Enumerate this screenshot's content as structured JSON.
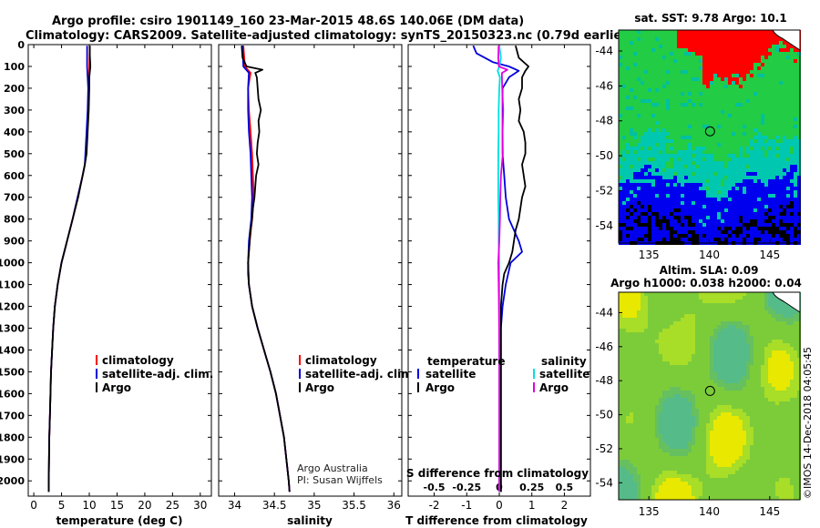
{
  "header": {
    "line1": "Argo profile: csiro 1901149_160 23-Mar-2015 48.6S 140.06E (DM data)",
    "line2": "Climatology: CARS2009. Satellite-adjusted climatology: synTS_20150323.nc (0.79d earlier)"
  },
  "credit": {
    "line1": "Argo Australia",
    "line2": "PI: Susan Wijffels",
    "watermark": "©IMOS 14-Dec-2018 04:05:45"
  },
  "depth_ticks": [
    "0",
    "100",
    "200",
    "300",
    "400",
    "500",
    "600",
    "700",
    "800",
    "900",
    "1000",
    "1100",
    "1200",
    "1300",
    "1400",
    "1500",
    "1600",
    "1700",
    "1800",
    "1900",
    "2000"
  ],
  "colors": {
    "climatology": "#ff0000",
    "satellite": "#0000dd",
    "argo": "#000000",
    "satellite_s": "#00e0e0",
    "argo_s": "#e000e0"
  },
  "chart_data": [
    {
      "type": "line",
      "id": "temperature",
      "xlabel": "temperature (deg C)",
      "xlim": [
        -1,
        32
      ],
      "xticks": [
        "0",
        "5",
        "10",
        "15",
        "20",
        "25",
        "30"
      ],
      "xtick_values": [
        0,
        5,
        10,
        15,
        20,
        25,
        30
      ],
      "ylim": [
        2070,
        0
      ],
      "legend": [
        "climatology",
        "satellite-adj. clim.",
        "Argo"
      ],
      "series": [
        {
          "name": "climatology",
          "depth": [
            5,
            100,
            200,
            300,
            400,
            500,
            550,
            600,
            700,
            800,
            900,
            1000,
            1100,
            1200,
            1300,
            1400,
            1500,
            1600,
            1700,
            1800,
            1900,
            2000,
            2050
          ],
          "values": [
            10.1,
            10.0,
            9.9,
            9.8,
            9.6,
            9.4,
            9.2,
            8.8,
            7.9,
            7.0,
            6.0,
            5.0,
            4.3,
            3.8,
            3.5,
            3.3,
            3.1,
            3.0,
            2.9,
            2.8,
            2.75,
            2.7,
            2.7
          ]
        },
        {
          "name": "satellite-adj. clim.",
          "depth": [
            5,
            100,
            200,
            300,
            400,
            500,
            550,
            600,
            700,
            800,
            900,
            1000,
            1100,
            1200,
            1300,
            1400,
            1500,
            1600,
            1700,
            1800,
            1900,
            2000,
            2050
          ],
          "values": [
            9.6,
            9.6,
            9.8,
            9.7,
            9.5,
            9.3,
            9.2,
            8.8,
            7.9,
            7.0,
            6.0,
            5.0,
            4.3,
            3.8,
            3.5,
            3.3,
            3.1,
            3.0,
            2.9,
            2.8,
            2.75,
            2.7,
            2.7
          ]
        },
        {
          "name": "Argo",
          "depth": [
            5,
            50,
            100,
            150,
            200,
            300,
            400,
            500,
            550,
            600,
            700,
            800,
            900,
            1000,
            1100,
            1200,
            1300,
            1400,
            1500,
            1600,
            1700,
            1800,
            1900,
            2000,
            2050
          ],
          "values": [
            10.1,
            10.1,
            10.2,
            10.0,
            10.0,
            9.9,
            9.7,
            9.5,
            9.2,
            8.8,
            8.0,
            7.0,
            6.0,
            5.0,
            4.3,
            3.8,
            3.5,
            3.3,
            3.1,
            3.0,
            2.9,
            2.8,
            2.75,
            2.7,
            2.7
          ]
        }
      ]
    },
    {
      "type": "line",
      "id": "salinity",
      "xlabel": "salinity",
      "xlim": [
        33.8,
        36.1
      ],
      "xticks": [
        "34",
        "34.5",
        "35",
        "35.5",
        "36"
      ],
      "xtick_values": [
        34,
        34.5,
        35,
        35.5,
        36
      ],
      "ylim": [
        2070,
        0
      ],
      "legend": [
        "climatology",
        "satellite-adj. clim.",
        "Argo"
      ],
      "series": [
        {
          "name": "climatology",
          "depth": [
            5,
            100,
            130,
            200,
            300,
            400,
            500,
            600,
            700,
            800,
            900,
            1000,
            1100,
            1200,
            1300,
            1400,
            1500,
            1600,
            1700,
            1800,
            1900,
            2000,
            2050
          ],
          "values": [
            34.11,
            34.13,
            34.2,
            34.17,
            34.18,
            34.2,
            34.22,
            34.23,
            34.24,
            34.22,
            34.19,
            34.17,
            34.18,
            34.22,
            34.29,
            34.37,
            34.45,
            34.52,
            34.57,
            34.62,
            34.65,
            34.68,
            34.69
          ]
        },
        {
          "name": "satellite-adj. clim.",
          "depth": [
            5,
            100,
            130,
            200,
            300,
            400,
            500,
            600,
            700,
            800,
            900,
            1000,
            1100,
            1200,
            1300,
            1400,
            1500,
            1600,
            1700,
            1800,
            1900,
            2000,
            2050
          ],
          "values": [
            34.1,
            34.11,
            34.18,
            34.17,
            34.17,
            34.18,
            34.2,
            34.21,
            34.22,
            34.21,
            34.18,
            34.17,
            34.18,
            34.22,
            34.29,
            34.37,
            34.45,
            34.52,
            34.57,
            34.62,
            34.65,
            34.68,
            34.69
          ]
        },
        {
          "name": "Argo",
          "depth": [
            5,
            60,
            100,
            115,
            130,
            150,
            200,
            250,
            300,
            350,
            400,
            450,
            500,
            550,
            600,
            650,
            700,
            750,
            800,
            850,
            900,
            950,
            1000,
            1050,
            1100,
            1200,
            1300,
            1400,
            1500,
            1600,
            1700,
            1800,
            1900,
            2000,
            2050
          ],
          "values": [
            34.09,
            34.1,
            34.15,
            34.35,
            34.26,
            34.28,
            34.29,
            34.3,
            34.33,
            34.3,
            34.31,
            34.29,
            34.28,
            34.3,
            34.27,
            34.26,
            34.25,
            34.23,
            34.22,
            34.2,
            34.19,
            34.18,
            34.17,
            34.17,
            34.18,
            34.22,
            34.29,
            34.37,
            34.45,
            34.52,
            34.57,
            34.62,
            34.65,
            34.68,
            34.69
          ]
        }
      ]
    },
    {
      "type": "line",
      "id": "difference",
      "xlabel": "T difference from climatology",
      "xlabel2": "S difference from climatology",
      "xlim": [
        -2.8,
        2.8
      ],
      "xticks": [
        "-2",
        "-1",
        "0",
        "1",
        "2"
      ],
      "xtick_values": [
        -2,
        -1,
        0,
        1,
        2
      ],
      "xticks2": [
        "-0.5",
        "-0.25",
        "0",
        "0.25",
        "0.5"
      ],
      "legend_t_title": "temperature",
      "legend_s_title": "salinity",
      "legend": [
        "satellite",
        "Argo",
        "satellite",
        "Argo"
      ],
      "ylim": [
        2070,
        0
      ],
      "series": [
        {
          "name": "satellite",
          "depth": [
            5,
            40,
            80,
            100,
            120,
            150,
            200,
            300,
            400,
            500,
            600,
            700,
            800,
            900,
            950,
            1000,
            1100,
            1200,
            1300,
            1500,
            1700,
            1900,
            2050
          ],
          "values": [
            -0.8,
            -0.7,
            -0.2,
            0.3,
            0.6,
            0.3,
            0.1,
            0.1,
            0.1,
            0.1,
            0.15,
            0.2,
            0.3,
            0.6,
            0.7,
            0.35,
            0.2,
            0.1,
            0.05,
            0.05,
            0.05,
            0.05,
            0.05
          ]
        },
        {
          "name": "Argo",
          "depth": [
            5,
            60,
            100,
            120,
            150,
            200,
            250,
            300,
            350,
            400,
            450,
            500,
            550,
            600,
            650,
            700,
            750,
            800,
            850,
            900,
            950,
            1000,
            1050,
            1100,
            1200,
            1300,
            1400,
            1600,
            1800,
            2000,
            2050
          ],
          "values": [
            0.5,
            0.6,
            0.9,
            0.8,
            0.7,
            0.7,
            0.6,
            0.65,
            0.6,
            0.75,
            0.8,
            0.8,
            0.7,
            0.75,
            0.8,
            0.7,
            0.65,
            0.6,
            0.5,
            0.45,
            0.4,
            0.3,
            0.15,
            0.1,
            0.05,
            0.05,
            0.05,
            0.05,
            0.05,
            0.05,
            0.05
          ]
        },
        {
          "name": "salinity satellite",
          "depth": [
            5,
            60,
            100,
            120,
            150,
            200,
            300,
            400,
            500,
            600,
            700,
            800,
            900,
            1000,
            1100,
            1200,
            1400,
            1600,
            1800,
            2000,
            2050
          ],
          "values": [
            0.0,
            0.05,
            0.0,
            -0.05,
            0.02,
            0.0,
            -0.02,
            -0.02,
            -0.03,
            -0.03,
            -0.03,
            -0.02,
            -0.02,
            0.0,
            0.0,
            0.0,
            0.0,
            0.0,
            0.0,
            0.0,
            0.0
          ]
        },
        {
          "name": "salinity Argo",
          "depth": [
            5,
            60,
            100,
            115,
            130,
            150,
            200,
            300,
            400,
            500,
            600,
            700,
            800,
            900,
            1000,
            1100,
            1200,
            1400,
            1600,
            1800,
            2000,
            2050
          ],
          "values": [
            -0.02,
            -0.03,
            -0.01,
            0.25,
            0.08,
            0.08,
            0.09,
            0.12,
            0.1,
            0.11,
            0.05,
            0.03,
            0.02,
            0.0,
            -0.03,
            -0.02,
            -0.01,
            0.0,
            0.0,
            0.0,
            0.0,
            0.0
          ]
        }
      ]
    },
    {
      "type": "heatmap",
      "id": "sst_map",
      "title": "sat. SST: 9.78 Argo: 10.1",
      "xticks": [
        "135",
        "140",
        "145"
      ],
      "xtick_values": [
        135,
        140,
        145
      ],
      "yticks": [
        "-44",
        "-46",
        "-48",
        "-50",
        "-52",
        "-54"
      ],
      "ytick_values": [
        -44,
        -46,
        -48,
        -50,
        -52,
        -54
      ],
      "xlim": [
        132.5,
        147.5
      ],
      "ylim": [
        -55,
        -42.8
      ],
      "marker": {
        "lon": 140.06,
        "lat": -48.6
      }
    },
    {
      "type": "heatmap",
      "id": "sla_map",
      "title": "Altim. SLA: 0.09",
      "title2": "Argo h1000: 0.038 h2000: 0.04",
      "xticks": [
        "135",
        "140",
        "145"
      ],
      "xtick_values": [
        135,
        140,
        145
      ],
      "yticks": [
        "-44",
        "-46",
        "-48",
        "-50",
        "-52",
        "-54"
      ],
      "ytick_values": [
        -44,
        -46,
        -48,
        -50,
        -52,
        -54
      ],
      "xlim": [
        132.5,
        147.5
      ],
      "ylim": [
        -55,
        -42.8
      ],
      "marker": {
        "lon": 140.06,
        "lat": -48.6
      }
    }
  ]
}
